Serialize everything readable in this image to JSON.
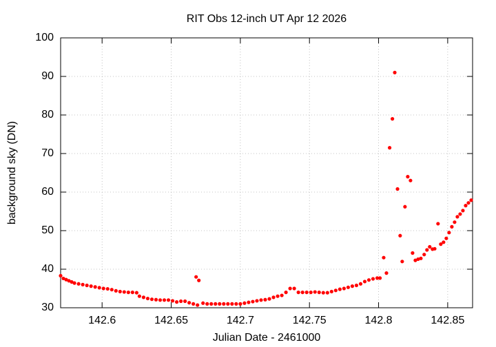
{
  "chart_data": {
    "type": "scatter",
    "title": "RIT Obs 12-inch UT Apr 12 2026",
    "x_label": "Julian Date - 2461000",
    "y_label": "background sky (DN)",
    "color": "#ff0000",
    "grid": true,
    "xlim": [
      142.57,
      142.868
    ],
    "ylim": [
      30,
      100
    ],
    "xticks": [
      142.6,
      142.65,
      142.7,
      142.75,
      142.8,
      142.85
    ],
    "yticks": [
      30,
      40,
      50,
      60,
      70,
      80,
      90,
      100
    ],
    "x": [
      142.57,
      142.572,
      142.574,
      142.576,
      142.578,
      142.58,
      142.583,
      142.586,
      142.589,
      142.592,
      142.595,
      142.598,
      142.601,
      142.604,
      142.607,
      142.61,
      142.613,
      142.616,
      142.619,
      142.622,
      142.625,
      142.627,
      142.63,
      142.633,
      142.636,
      142.639,
      142.642,
      142.645,
      142.648,
      142.651,
      142.654,
      142.657,
      142.66,
      142.663,
      142.666,
      142.668,
      142.669,
      142.67,
      142.673,
      142.676,
      142.679,
      142.682,
      142.685,
      142.688,
      142.691,
      142.694,
      142.697,
      142.7,
      142.703,
      142.706,
      142.709,
      142.712,
      142.715,
      142.718,
      142.721,
      142.724,
      142.727,
      142.73,
      142.733,
      142.736,
      142.739,
      142.742,
      142.745,
      142.748,
      142.751,
      142.754,
      142.757,
      142.76,
      142.763,
      142.766,
      142.769,
      142.772,
      142.775,
      142.778,
      142.781,
      142.784,
      142.787,
      142.79,
      142.793,
      142.796,
      142.799,
      142.801,
      142.8037,
      142.8057,
      142.808,
      142.81,
      142.8117,
      142.8137,
      142.8156,
      142.8171,
      142.8191,
      142.8211,
      142.8231,
      142.8246,
      142.8266,
      142.8286,
      142.8306,
      142.833,
      142.835,
      142.837,
      142.839,
      142.8406,
      142.843,
      142.845,
      142.847,
      142.849,
      142.851,
      142.853,
      142.855,
      142.857,
      142.859,
      142.861,
      142.863,
      142.865,
      142.867
    ],
    "values": [
      38.3,
      37.6,
      37.3,
      37.0,
      36.7,
      36.4,
      36.2,
      36.0,
      35.8,
      35.6,
      35.4,
      35.2,
      35.0,
      34.9,
      34.7,
      34.4,
      34.2,
      34.1,
      34.0,
      34.0,
      33.9,
      33.0,
      32.7,
      32.4,
      32.2,
      32.1,
      32.0,
      32.0,
      32.0,
      31.8,
      31.5,
      31.7,
      31.7,
      31.3,
      31.0,
      38.0,
      30.7,
      37.1,
      31.2,
      31.0,
      31.0,
      31.0,
      31.0,
      31.0,
      31.0,
      31.0,
      31.0,
      31.0,
      31.2,
      31.4,
      31.6,
      31.8,
      32.0,
      32.1,
      32.3,
      32.7,
      33.0,
      33.2,
      34.0,
      35.0,
      35.0,
      34.0,
      34.0,
      34.0,
      34.0,
      34.1,
      34.0,
      33.9,
      33.9,
      34.2,
      34.5,
      34.8,
      35.0,
      35.3,
      35.6,
      35.8,
      36.2,
      36.8,
      37.2,
      37.5,
      37.7,
      37.7,
      43.0,
      39.0,
      71.5,
      79.0,
      91.0,
      60.8,
      48.7,
      42.0,
      56.2,
      64.0,
      63.0,
      44.2,
      42.3,
      42.6,
      42.8,
      43.8,
      45.0,
      45.8,
      45.2,
      45.3,
      51.8,
      46.5,
      47.0,
      48.0,
      49.5,
      51.0,
      52.2,
      53.6,
      54.3,
      55.2,
      56.5,
      57.2,
      57.9
    ]
  }
}
